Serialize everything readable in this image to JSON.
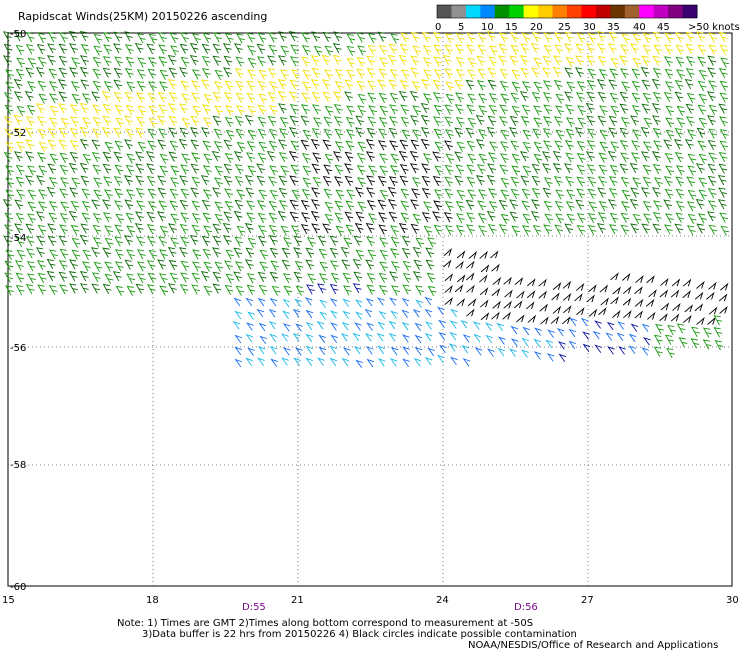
{
  "title": "Rapidscat Winds(25KM) 20150226 ascending",
  "colorbar": {
    "labels": [
      "0",
      "5",
      "10",
      "15",
      "20",
      "25",
      "30",
      "35",
      "40",
      "45",
      ">50 knots"
    ],
    "colors": [
      "#555555",
      "#909090",
      "#00d8ff",
      "#0088ff",
      "#009000",
      "#00d000",
      "#ffff00",
      "#ffcc00",
      "#ff8000",
      "#ff4000",
      "#ff0000",
      "#c00000",
      "#6a3500",
      "#a06030",
      "#ff00ff",
      "#c000c0",
      "#800080",
      "#3a0070"
    ]
  },
  "lat_labels": [
    "-50",
    "-52",
    "-54",
    "-56",
    "-58",
    "-60"
  ],
  "lon_labels": [
    "15",
    "18",
    "21",
    "24",
    "27",
    "30"
  ],
  "time_labels": [
    "D:55",
    "D:56"
  ],
  "notes": {
    "line1": "Note: 1) Times are GMT 2)Times along bottom correspond to measurement at -50S",
    "line2": "3)Data buffer is 22 hrs from 20150226 4) Black circles indicate possible contamination",
    "line3": "NOAA/NESDIS/Office of Research and Applications"
  },
  "wind_colors": {
    "green": "#1a9a10",
    "dark_green": "#0c6a06",
    "yellow": "#f0e000",
    "black": "#000000",
    "blue": "#1a6ef0",
    "navy": "#0b12a0",
    "cyan": "#19b8e8"
  }
}
